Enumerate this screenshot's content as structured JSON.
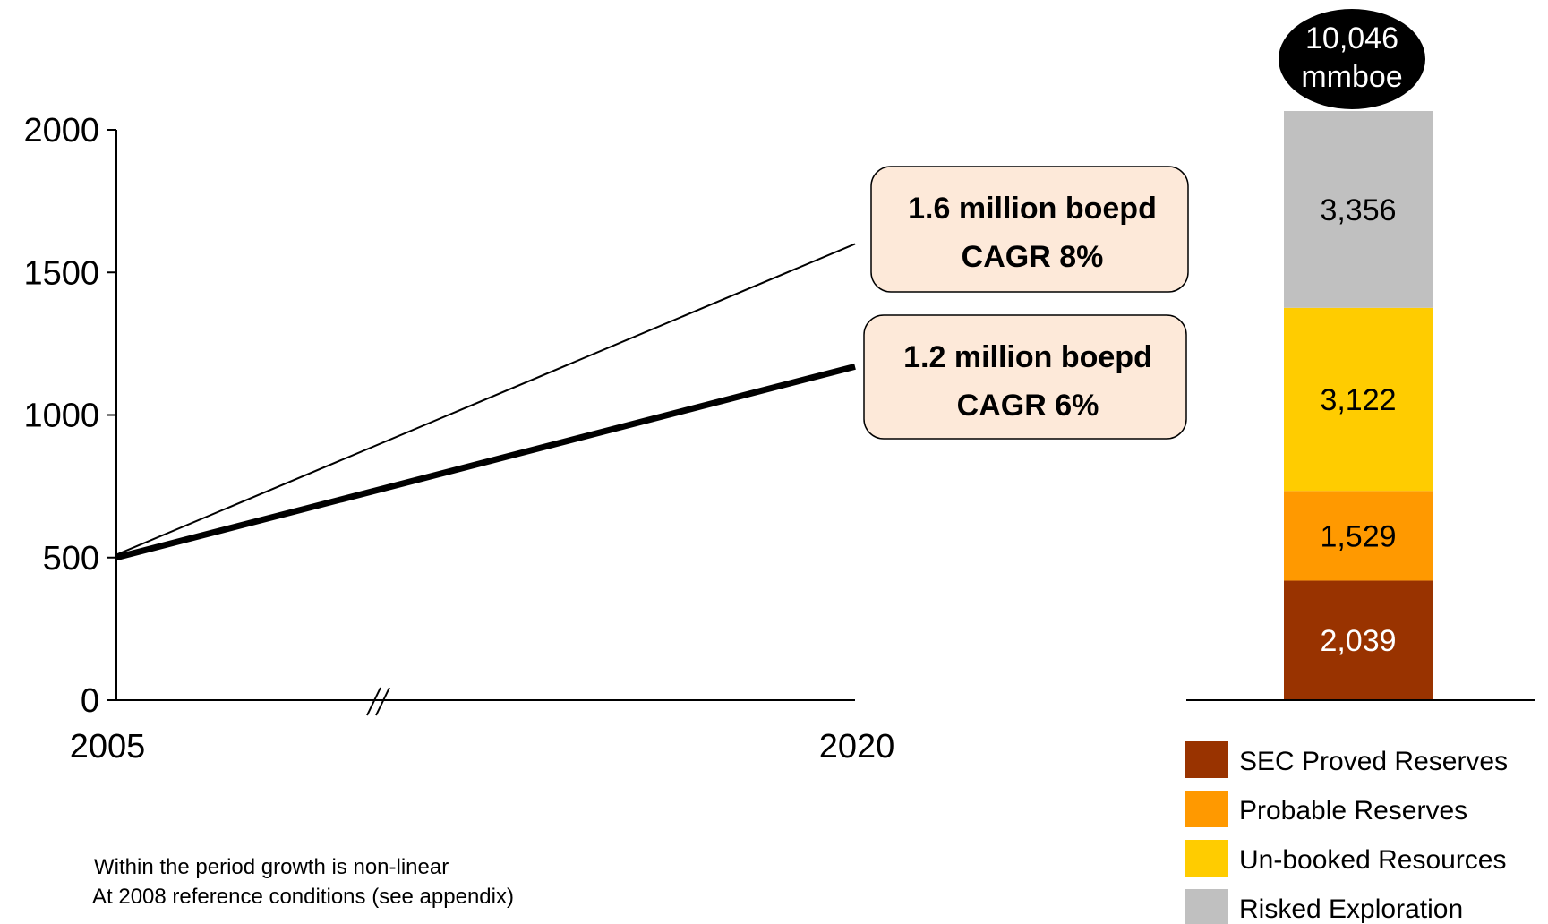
{
  "chart_data": [
    {
      "type": "line",
      "x": [
        2005,
        2020
      ],
      "xlim": [
        2005,
        2020
      ],
      "x_tick_labels": [
        "2005",
        "2020"
      ],
      "ylim": [
        0,
        2000
      ],
      "y_ticks": [
        0,
        500,
        1000,
        1500,
        2000
      ],
      "axis_break": "//",
      "grid": false,
      "series": [
        {
          "values": [
            510,
            1600
          ],
          "style": "thin",
          "color": "#000000",
          "callout": {
            "line1": "1.6 million boepd",
            "line2": "CAGR 8%"
          }
        },
        {
          "values": [
            500,
            1170
          ],
          "style": "thick",
          "color": "#000000",
          "callout": {
            "line1": "1.2 million boepd",
            "line2": "CAGR 6%"
          }
        }
      ]
    },
    {
      "type": "bar",
      "stacked": true,
      "total_label": {
        "line1": "10,046",
        "line2": "mmboe"
      },
      "series": [
        {
          "name": "SEC Proved Reserves",
          "value": 2039,
          "label": "2,039",
          "color": "#993300",
          "text_color": "#ffffff"
        },
        {
          "name": "Probable Reserves",
          "value": 1529,
          "label": "1,529",
          "color": "#ff9900",
          "text_color": "#000000"
        },
        {
          "name": "Un-booked Resources",
          "value": 3122,
          "label": "3,122",
          "color": "#ffcc00",
          "text_color": "#000000"
        },
        {
          "name": "Risked Exploration",
          "value": 3356,
          "label": "3,356",
          "color": "#c0c0c0",
          "text_color": "#000000"
        }
      ],
      "legend_position": "bottom"
    }
  ],
  "notes": {
    "line1": "Within the period growth is non-linear",
    "line2": "At 2008 reference conditions (see appendix)"
  },
  "colors": {
    "callout_fill": "#fde9d9",
    "callout_border": "#000000",
    "total_badge_fill": "#000000",
    "total_badge_text": "#ffffff"
  }
}
